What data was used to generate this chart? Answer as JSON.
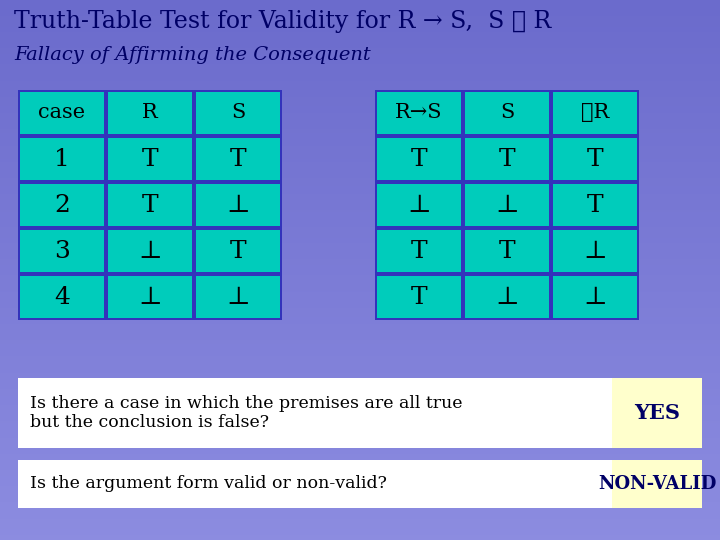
{
  "title_line1": "Truth-Table Test for Validity for R → S,  S ∴ R",
  "title_line2": "Fallacy of Affirming the Consequent",
  "bg_color": "#6666cc",
  "table_bg": "#00ccbb",
  "table_border": "#3333bb",
  "header_row": [
    "case",
    "R",
    "S"
  ],
  "header_row2": [
    "R→S",
    "S",
    "∴R"
  ],
  "rows": [
    [
      "1",
      "T",
      "T"
    ],
    [
      "2",
      "T",
      "⊥"
    ],
    [
      "3",
      "⊥",
      "T"
    ],
    [
      "4",
      "⊥",
      "⊥"
    ]
  ],
  "rows2": [
    [
      "T",
      "T",
      "T"
    ],
    [
      "⊥",
      "⊥",
      "T"
    ],
    [
      "T",
      "T",
      "⊥"
    ],
    [
      "T",
      "⊥",
      "⊥"
    ]
  ],
  "q1_text": "Is there a case in which the premises are all true\nbut the conclusion is false?",
  "q1_answer": "YES",
  "q2_text": "Is the argument form valid or non-valid?",
  "q2_answer": "NON-VALID",
  "q_box_bg": "#ffffff",
  "q_answer_bg": "#ffffcc",
  "title_color": "#000066",
  "table_text_color": "#000000",
  "q_text_color": "#000000",
  "q_answer_color": "#000066"
}
